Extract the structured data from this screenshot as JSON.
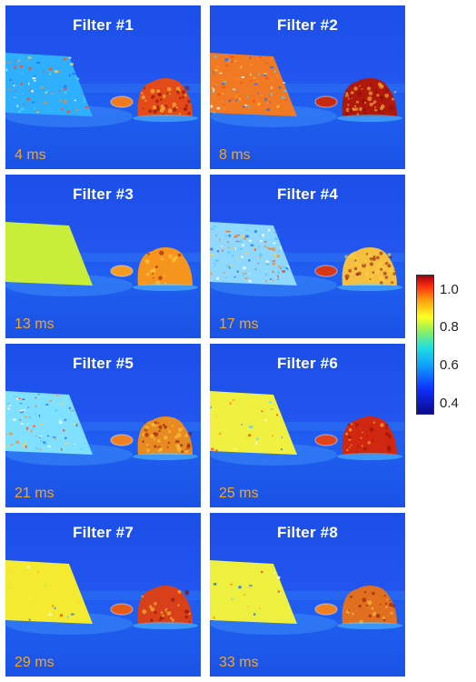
{
  "panels": [
    {
      "title": "Filter #1",
      "time": "4 ms",
      "block": "#2fb0ff",
      "small": "#f07a20",
      "right": "#e24a18",
      "texture": 0.5
    },
    {
      "title": "Filter #2",
      "time": "8 ms",
      "block": "#f07a24",
      "small": "#c82a10",
      "right": "#b0180c",
      "texture": 0.6
    },
    {
      "title": "Filter #3",
      "time": "13 ms",
      "block": "#c8ee3a",
      "small": "#f59a22",
      "right": "#f5951e",
      "texture": 0.0
    },
    {
      "title": "Filter #4",
      "time": "17 ms",
      "block": "#8fd8ff",
      "small": "#d83614",
      "right": "#f5c040",
      "texture": 0.7
    },
    {
      "title": "Filter #5",
      "time": "21 ms",
      "block": "#7fe0ff",
      "small": "#f08020",
      "right": "#e88a22",
      "texture": 0.5
    },
    {
      "title": "Filter #6",
      "time": "25 ms",
      "block": "#f0f040",
      "small": "#e04418",
      "right": "#d02810",
      "texture": 0.15
    },
    {
      "title": "Filter #7",
      "time": "29 ms",
      "block": "#f4ea30",
      "small": "#e85a18",
      "right": "#d8401a",
      "texture": 0.1
    },
    {
      "title": "Filter #8",
      "time": "33 ms",
      "block": "#eef040",
      "small": "#f08020",
      "right": "#e07020",
      "texture": 0.1
    }
  ],
  "colorbar": {
    "ticks": [
      "1.0",
      "0.8",
      "0.6",
      "0.4"
    ],
    "values": [
      1.0,
      0.8,
      0.6,
      0.4
    ],
    "min": 0.35,
    "max": 1.08
  }
}
